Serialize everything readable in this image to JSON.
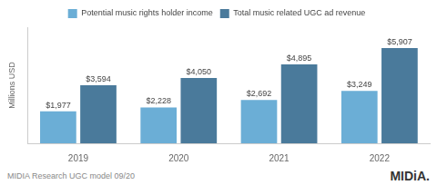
{
  "chart_data": {
    "type": "bar",
    "categories": [
      "2019",
      "2020",
      "2021",
      "2022"
    ],
    "series": [
      {
        "name": "Potential music rights holder income",
        "color": "#6baed6",
        "values": [
          1977,
          2228,
          2692,
          3249
        ],
        "value_labels": [
          "$1,977",
          "$2,228",
          "$2,692",
          "$3,249"
        ]
      },
      {
        "name": "Total music related UGC ad revenue",
        "color": "#4a7a9b",
        "values": [
          3594,
          4050,
          4895,
          5907
        ],
        "value_labels": [
          "$3,594",
          "$4,050",
          "$4,895",
          "$5,907"
        ]
      }
    ],
    "ylabel": "Millions USD",
    "ylim": [
      0,
      7200
    ],
    "tick_labels": "x",
    "grid": false,
    "legend": "top",
    "data_labels": true,
    "annotations": [
      "MIDIA Research UGC model 09/20",
      "MIDiA."
    ]
  }
}
